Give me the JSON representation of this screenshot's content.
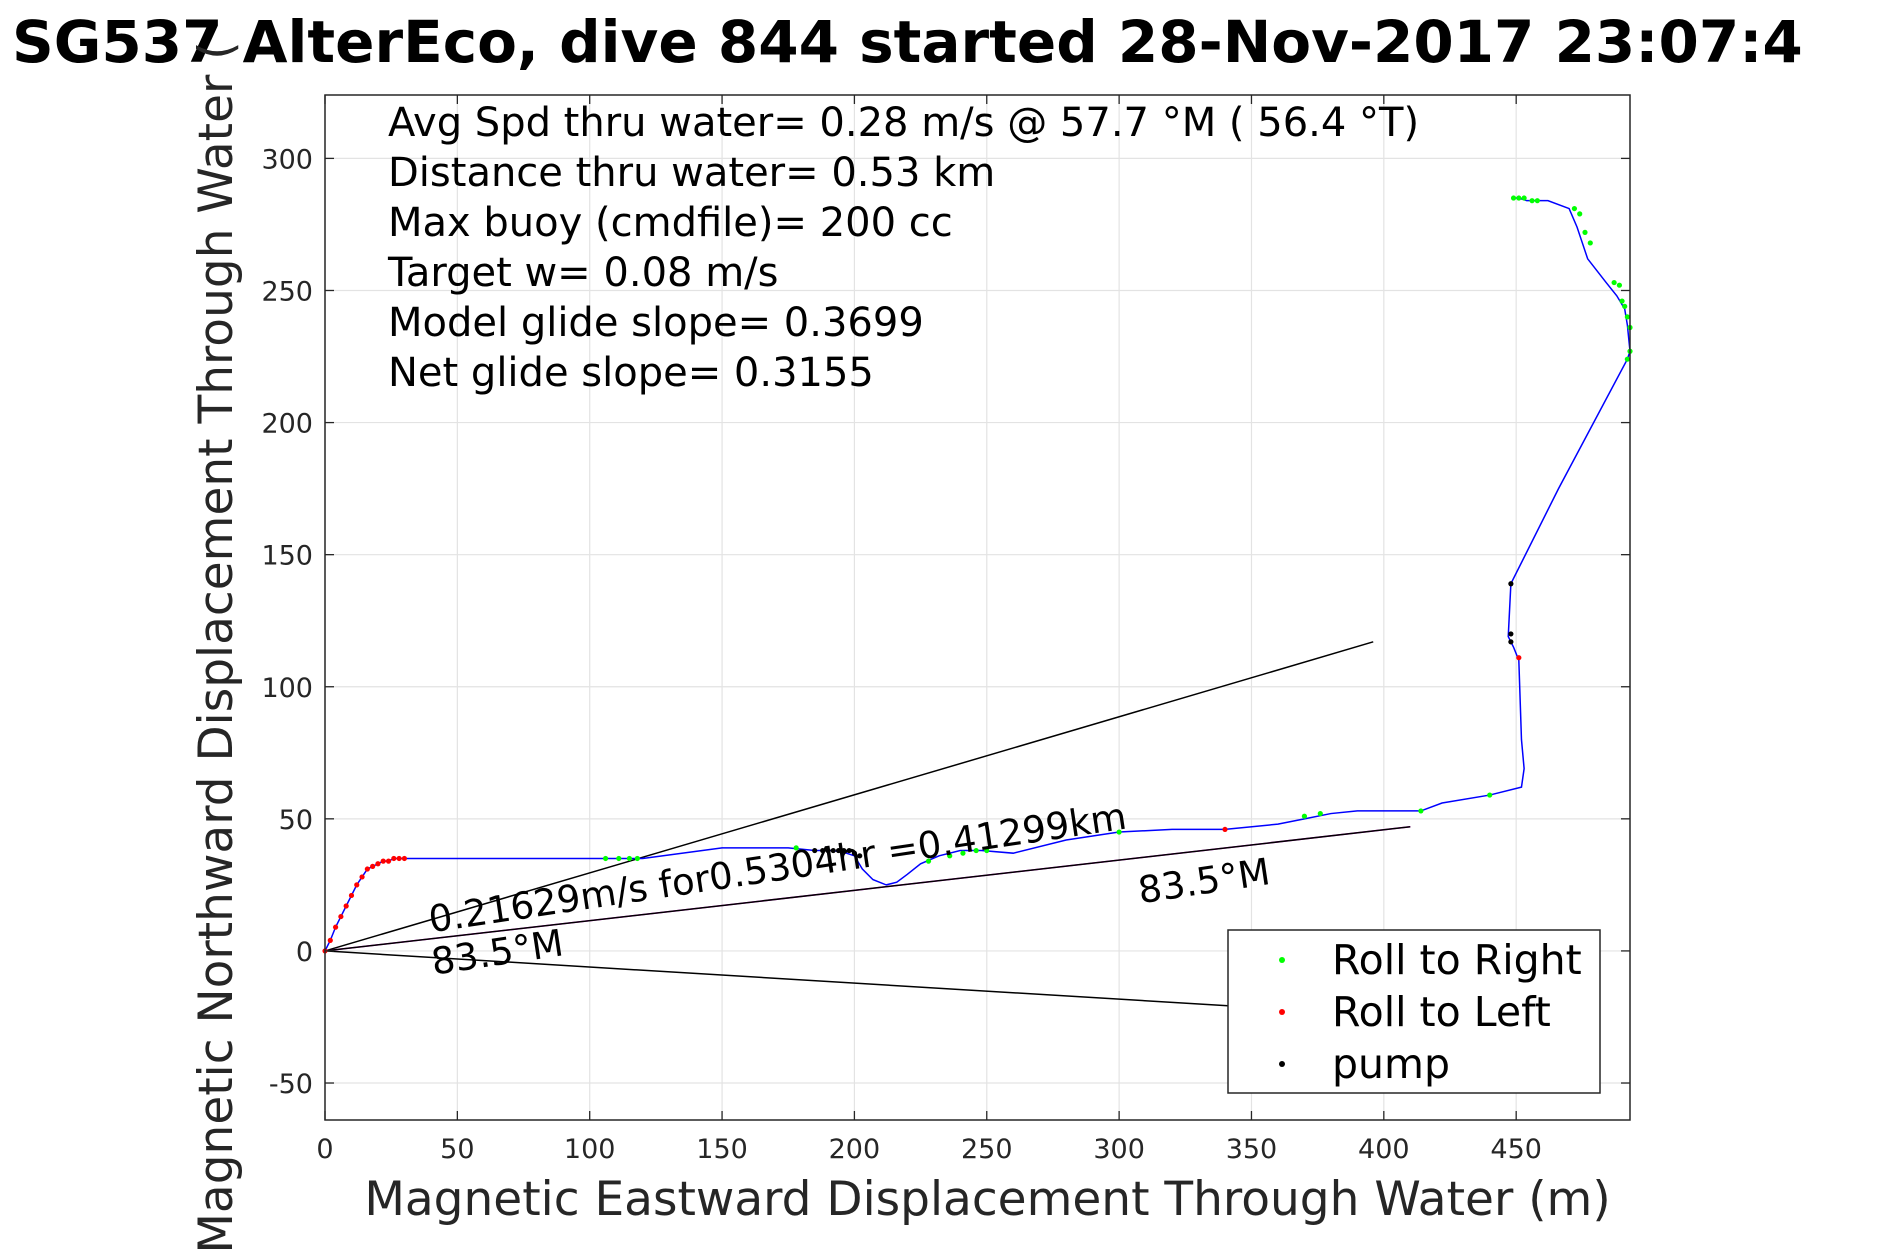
{
  "chart_data": {
    "type": "line",
    "title": "SG537 AlterEco, dive 844 started 28-Nov-2017 23:07:4",
    "xlabel": "Magnetic Eastward Displacement Through Water (m)",
    "ylabel": "Magnetic Northward Displacement Through Water (",
    "xlim": [
      0,
      493
    ],
    "ylim": [
      -64,
      324
    ],
    "x_ticks": [
      0,
      50,
      100,
      150,
      200,
      250,
      300,
      350,
      400,
      450
    ],
    "x_tick_labels": [
      "0",
      "50",
      "100",
      "150",
      "200",
      "250",
      "300",
      "350",
      "400",
      "450"
    ],
    "y_ticks": [
      -50,
      0,
      50,
      100,
      150,
      200,
      250,
      300
    ],
    "y_tick_labels": [
      "-50",
      "0",
      "50",
      "100",
      "150",
      "200",
      "250",
      "300"
    ],
    "grid": true,
    "legend_position": "bottom-right",
    "stats_lines": [
      "Avg Spd thru water=  0.28 m/s @  57.7 °M ( 56.4 °T)",
      "Distance thru water=  0.53 km",
      "Max buoy (cmdfile)= 200 cc",
      "Target w= 0.08 m/s",
      "Model glide slope= 0.3699",
      "Net glide slope= 0.3155"
    ],
    "annotations": [
      {
        "text": "0.21629m/s for0.5304hr =0.41299km",
        "x": 40,
        "y": 7,
        "rotation_deg": -8.5
      },
      {
        "text": "83.5°M",
        "x": 41,
        "y": -9,
        "rotation_deg": -8.5
      },
      {
        "text": "83.5°M",
        "x": 308,
        "y": 18,
        "rotation_deg": -8.5
      }
    ],
    "series": [
      {
        "name": "track",
        "color": "#0000ff",
        "x": [
          0,
          2,
          4,
          6,
          8,
          10,
          12,
          14,
          16,
          18,
          20,
          22,
          24,
          26,
          28,
          30,
          60,
          80,
          100,
          110,
          120,
          150,
          175,
          185,
          192,
          197,
          200,
          203,
          207,
          212,
          216,
          220,
          225,
          232,
          240,
          248,
          260,
          280,
          300,
          320,
          340,
          360,
          370,
          380,
          390,
          400,
          414,
          422,
          440,
          452,
          453,
          452,
          451,
          449,
          448,
          447,
          448,
          466,
          492,
          493,
          492,
          491,
          488,
          484,
          477,
          475,
          473,
          470,
          462,
          454,
          451,
          450,
          449
        ],
        "y": [
          0,
          4,
          9,
          13,
          17,
          21,
          25,
          28,
          31,
          32,
          33,
          34,
          34,
          35,
          35,
          35,
          35,
          35,
          35,
          35,
          35,
          39,
          39,
          38,
          38,
          37,
          36,
          31,
          27,
          25,
          26,
          29,
          33,
          36,
          38,
          38,
          37,
          42,
          45,
          46,
          46,
          48,
          50,
          52,
          53,
          53,
          53,
          56,
          59,
          62,
          69,
          80,
          110,
          115,
          117,
          119,
          139,
          175,
          224,
          227,
          237,
          243,
          248,
          253,
          262,
          268,
          274,
          281,
          284,
          284,
          285,
          285,
          285
        ]
      },
      {
        "name": "Roll to Right",
        "color": "#00ff00",
        "x": [
          106,
          111,
          115,
          118,
          178,
          228,
          236,
          241,
          246,
          250,
          300,
          370,
          376,
          414,
          440,
          449,
          451,
          453,
          456,
          458,
          472,
          474,
          476,
          478,
          487,
          489,
          490,
          491,
          492,
          493,
          493,
          492
        ],
        "y": [
          35,
          35,
          35,
          35,
          39,
          34,
          36,
          37,
          38,
          38,
          45,
          51,
          52,
          53,
          59,
          285,
          285,
          285,
          284,
          284,
          281,
          279,
          272,
          268,
          253,
          252,
          246,
          244,
          240,
          236,
          227,
          224
        ]
      },
      {
        "name": "Roll to Left",
        "color": "#ff0000",
        "x": [
          0,
          2,
          4,
          6,
          8,
          10,
          12,
          14,
          16,
          18,
          20,
          22,
          24,
          26,
          28,
          30,
          340,
          451
        ],
        "y": [
          0,
          4,
          9,
          13,
          17,
          21,
          25,
          28,
          31,
          32,
          33,
          34,
          34,
          35,
          35,
          35,
          46,
          111
        ]
      },
      {
        "name": "pump",
        "color": "#000000",
        "x": [
          185,
          188,
          190,
          192,
          194,
          196,
          198,
          200,
          202,
          448,
          448,
          448
        ],
        "y": [
          38,
          38,
          38,
          38,
          38,
          38,
          38,
          37,
          36,
          117,
          120,
          139
        ]
      }
    ],
    "reference_lines": [
      {
        "color": "#000000",
        "x": [
          0,
          396
        ],
        "y": [
          0,
          117
        ]
      },
      {
        "color": "#000000",
        "x": [
          0,
          345
        ],
        "y": [
          0,
          -21
        ]
      },
      {
        "color": "#ff00ff",
        "x": [
          0,
          410
        ],
        "y": [
          0,
          47
        ]
      },
      {
        "color": "#000000",
        "x": [
          0,
          410
        ],
        "y": [
          0,
          47
        ]
      }
    ],
    "legend": [
      {
        "label": "Roll to Right",
        "color": "#00ff00"
      },
      {
        "label": "Roll to Left",
        "color": "#ff0000"
      },
      {
        "label": "pump",
        "color": "#000000"
      }
    ]
  }
}
